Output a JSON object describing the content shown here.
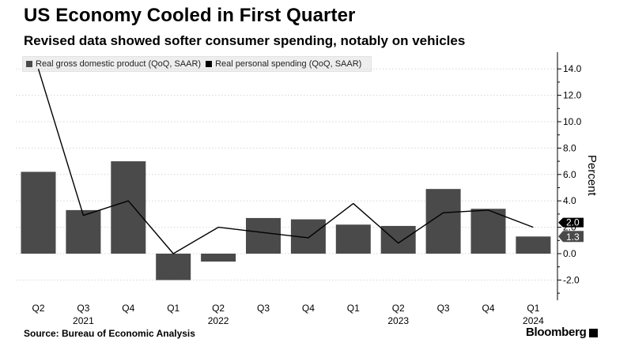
{
  "header": {
    "title": "US Economy Cooled in First Quarter",
    "subtitle": "Revised data showed softer consumer spending, notably on vehicles"
  },
  "legend": {
    "gdp": "Real gross domestic product (QoQ, SAAR)",
    "spending": "Real personal spending (QoQ, SAAR)"
  },
  "footer": {
    "source": "Source:  Bureau of Economic Analysis",
    "brand": "Bloomberg"
  },
  "colors": {
    "bar": "#4a4a4a",
    "line": "#000000",
    "grid": "#d6d6d6",
    "axis": "#000000",
    "label_bar_bg": "#4a4a4a",
    "label_line_bg": "#000000"
  },
  "chart_data": {
    "type": "bar+line",
    "categories": [
      "Q2",
      "Q3",
      "Q4",
      "Q1",
      "Q2",
      "Q3",
      "Q4",
      "Q1",
      "Q2",
      "Q3",
      "Q4",
      "Q1"
    ],
    "year_labels": [
      {
        "category_index": 1,
        "label": "2021"
      },
      {
        "category_index": 4,
        "label": "2022"
      },
      {
        "category_index": 8,
        "label": "2023"
      },
      {
        "category_index": 11,
        "label": "2024"
      }
    ],
    "series": [
      {
        "name": "Real gross domestic product (QoQ, SAAR)",
        "type": "bar",
        "values": [
          6.2,
          3.3,
          7.0,
          -2.0,
          -0.6,
          2.7,
          2.6,
          2.2,
          2.1,
          4.9,
          3.4,
          1.3
        ]
      },
      {
        "name": "Real personal spending (QoQ, SAAR)",
        "type": "line",
        "values": [
          14.0,
          2.9,
          4.0,
          0.0,
          2.0,
          1.6,
          1.2,
          3.8,
          0.8,
          3.1,
          3.3,
          2.0
        ]
      }
    ],
    "end_labels": {
      "line": "2.0",
      "bar": "1.3"
    },
    "y_ticks": [
      14.0,
      12.0,
      10.0,
      8.0,
      6.0,
      4.0,
      2.0,
      0.0,
      -2.0
    ],
    "y_tick_labels": [
      "14.0",
      "12.0",
      "10.0",
      "8.0",
      "6.0",
      "4.0",
      "2.0",
      "0.0",
      "-2.0"
    ],
    "ylim": [
      -3.4,
      15.0
    ],
    "ylabel": "Percent",
    "xlabel": "",
    "grid": true,
    "legend_position": "top-left"
  }
}
